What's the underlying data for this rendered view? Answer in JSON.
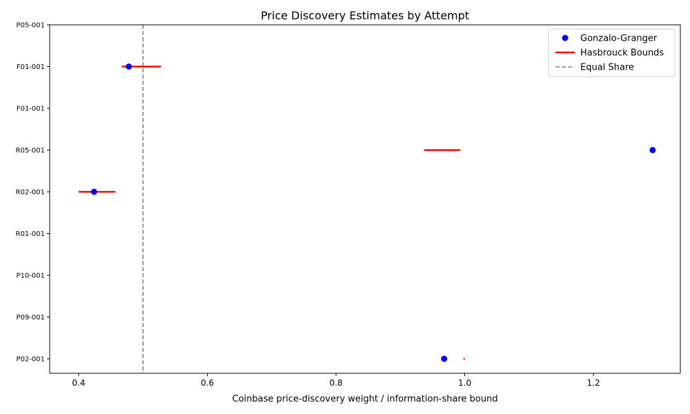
{
  "chart_data": {
    "type": "scatter",
    "title": "Price Discovery Estimates by Attempt",
    "xlabel": "Coinbase price-discovery weight / information-share bound",
    "ylabel": "",
    "xlim": [
      0.355,
      1.335
    ],
    "x_ticks": [
      0.4,
      0.6,
      0.8,
      1.0,
      1.2
    ],
    "x_tick_labels": [
      "0.4",
      "0.6",
      "0.8",
      "1.0",
      "1.2"
    ],
    "categories": [
      "P02-001",
      "P09-001",
      "P10-001",
      "R01-001",
      "R02-001",
      "R05-001",
      "F01-001",
      "F01-001",
      "P05-001"
    ],
    "grid": false,
    "legend_position": "top-right",
    "series": [
      {
        "name": "Gonzalo-Granger",
        "kind": "points",
        "color": "#0000ff",
        "points": [
          {
            "row": 0,
            "x": 0.968
          },
          {
            "row": 4,
            "x": 0.424
          },
          {
            "row": 5,
            "x": 1.292
          },
          {
            "row": 7,
            "x": 0.478
          }
        ]
      },
      {
        "name": "Hasbrouck Bounds",
        "kind": "interval",
        "color": "#ff0000",
        "intervals": [
          {
            "row": 0,
            "lo": 0.998,
            "hi": 1.0
          },
          {
            "row": 4,
            "lo": 0.4,
            "hi": 0.457
          },
          {
            "row": 5,
            "lo": 0.937,
            "hi": 0.993
          },
          {
            "row": 7,
            "lo": 0.467,
            "hi": 0.528
          }
        ]
      },
      {
        "name": "Equal Share",
        "kind": "vline",
        "color": "#808080",
        "x": 0.5
      }
    ]
  }
}
